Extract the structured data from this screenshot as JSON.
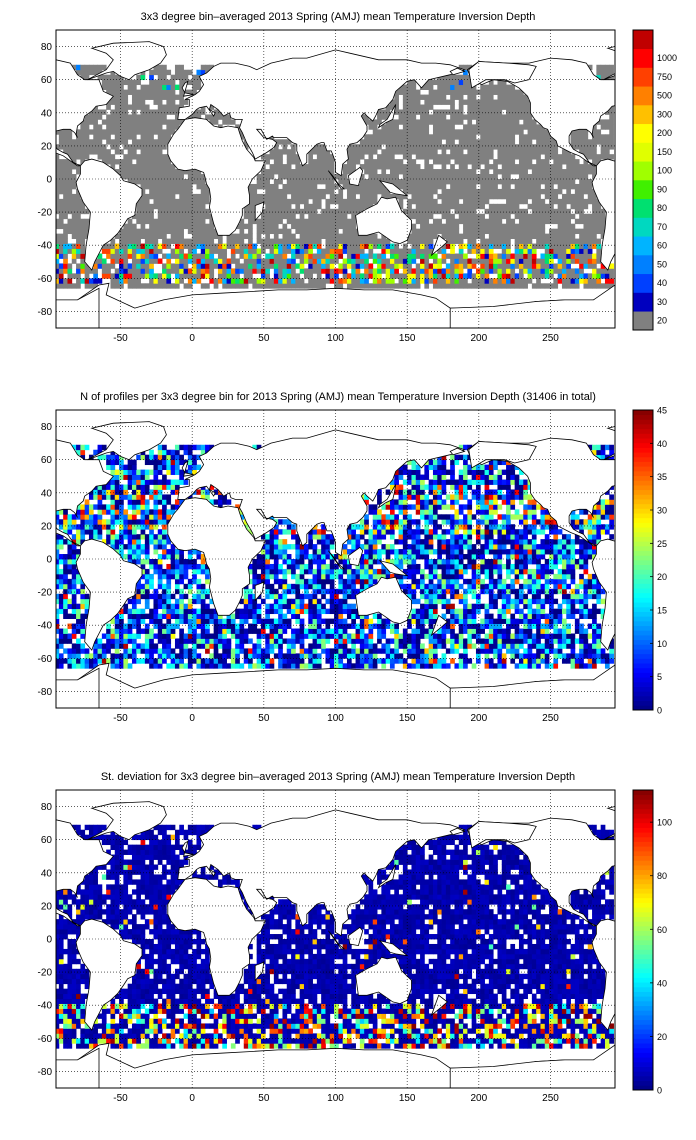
{
  "chart_data": [
    {
      "type": "heatmap",
      "title": "3x3 degree bin–averaged 2013 Spring (AMJ) mean Temperature Inversion Depth",
      "xlim": [
        -95,
        295
      ],
      "ylim": [
        -90,
        90
      ],
      "xticks": [
        -50,
        0,
        50,
        100,
        150,
        200,
        250
      ],
      "yticks": [
        -80,
        -60,
        -40,
        -20,
        0,
        20,
        40,
        60,
        80
      ],
      "grid": true,
      "colorbar": {
        "scale": "categorical",
        "labels": [
          "20",
          "30",
          "40",
          "50",
          "60",
          "70",
          "80",
          "90",
          "100",
          "150",
          "200",
          "300",
          "500",
          "750",
          "1000"
        ],
        "colors": [
          "#808080",
          "#0000bf",
          "#0040ff",
          "#0080ff",
          "#00b4ff",
          "#00d8c0",
          "#00e070",
          "#40f000",
          "#a0ff00",
          "#e0ff00",
          "#ffff00",
          "#ffc000",
          "#ff8000",
          "#ff4000",
          "#ff0000",
          "#c00000"
        ]
      },
      "background_value": "20"
    },
    {
      "type": "heatmap",
      "title": "N of profiles per 3x3 degree bin for 2013 Spring (AMJ) mean Temperature Inversion Depth  (31406 in total)",
      "xlim": [
        -95,
        295
      ],
      "ylim": [
        -90,
        90
      ],
      "xticks": [
        -50,
        0,
        50,
        100,
        150,
        200,
        250
      ],
      "yticks": [
        -80,
        -60,
        -40,
        -20,
        0,
        20,
        40,
        60,
        80
      ],
      "grid": true,
      "colorbar": {
        "scale": "linear",
        "range": [
          0,
          45
        ],
        "ticks": [
          0,
          5,
          10,
          15,
          20,
          25,
          30,
          35,
          40,
          45
        ],
        "colormap": "jet"
      }
    },
    {
      "type": "heatmap",
      "title": "St. deviation for 3x3 degree bin–averaged 2013 Spring (AMJ) mean Temperature Inversion Depth",
      "xlim": [
        -95,
        295
      ],
      "ylim": [
        -90,
        90
      ],
      "xticks": [
        -50,
        0,
        50,
        100,
        150,
        200,
        250
      ],
      "yticks": [
        -80,
        -60,
        -40,
        -20,
        0,
        20,
        40,
        60,
        80
      ],
      "grid": true,
      "colorbar": {
        "scale": "linear",
        "range": [
          0,
          112
        ],
        "ticks": [
          0,
          20,
          40,
          60,
          80,
          100
        ],
        "colormap": "jet"
      }
    }
  ]
}
